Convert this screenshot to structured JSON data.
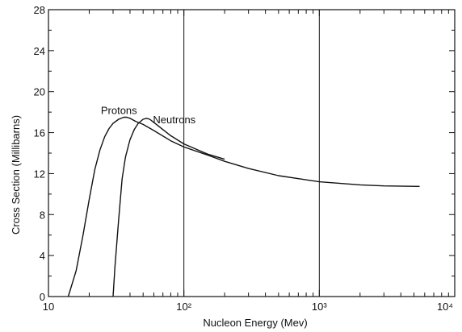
{
  "chart_data": {
    "type": "line",
    "title": "",
    "xlabel": "Nucleon Energy (Mev)",
    "ylabel": "Cross Section (Millibarns)",
    "x_scale": "log",
    "xlim": [
      10,
      10000
    ],
    "ylim": [
      0,
      28
    ],
    "x_ticks": [
      {
        "value": 10,
        "label": "10"
      },
      {
        "value": 100,
        "label": "10²"
      },
      {
        "value": 1000,
        "label": "10³"
      },
      {
        "value": 10000,
        "label": "10⁴"
      }
    ],
    "y_ticks": [
      0,
      4,
      8,
      12,
      16,
      20,
      24,
      28
    ],
    "grid": "vertical lines at 10², 10³",
    "series": [
      {
        "name": "Protons",
        "x": [
          14,
          16,
          18,
          20,
          22,
          24,
          26,
          28,
          30,
          33,
          36,
          38,
          40,
          44,
          50,
          60,
          80,
          100,
          150,
          200,
          300,
          500,
          1000,
          2000,
          3000,
          5500
        ],
        "y": [
          0,
          2.5,
          6.0,
          9.5,
          12.4,
          14.3,
          15.6,
          16.4,
          16.9,
          17.3,
          17.5,
          17.5,
          17.4,
          17.1,
          16.8,
          16.2,
          15.2,
          14.6,
          13.8,
          13.2,
          12.5,
          11.8,
          11.2,
          10.9,
          10.8,
          10.75
        ]
      },
      {
        "name": "Neutrons",
        "x": [
          30,
          31,
          33,
          35,
          37,
          40,
          43,
          46,
          50,
          53,
          56,
          60,
          70,
          80,
          100,
          150,
          200
        ],
        "y": [
          0,
          3.0,
          7.5,
          11.5,
          13.6,
          15.3,
          16.3,
          16.9,
          17.3,
          17.4,
          17.3,
          17.0,
          16.3,
          15.7,
          14.9,
          13.9,
          13.4
        ]
      }
    ]
  }
}
